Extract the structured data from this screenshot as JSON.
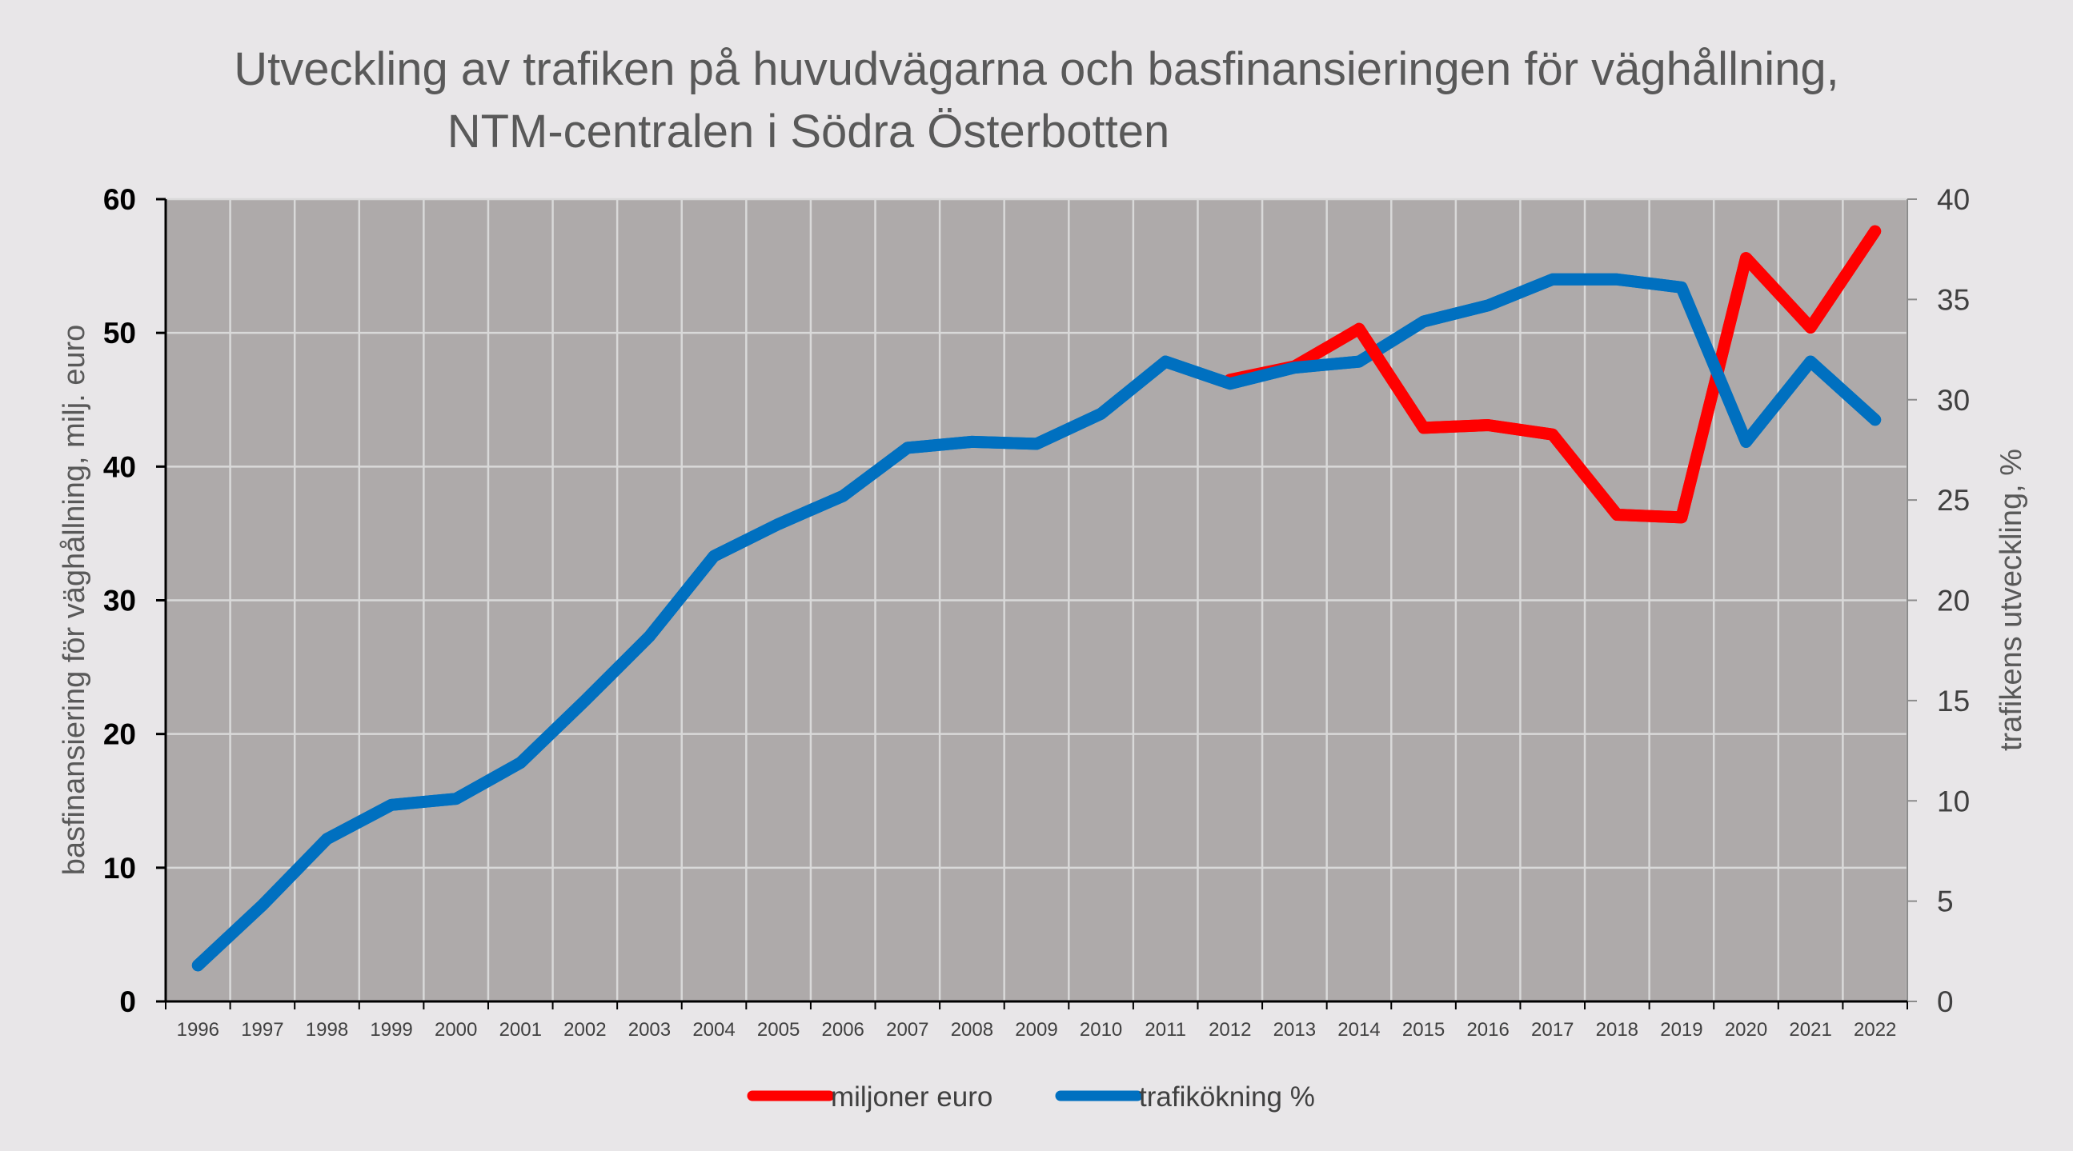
{
  "chart_data": {
    "type": "line",
    "title_lines": [
      "Utveckling av trafiken på huvudvägarna och basfinansieringen för väghållning,",
      "NTM-centralen i Södra Österbotten"
    ],
    "ylabel_left": "basfinansiering för väghållning, milj. euro",
    "ylabel_right": "trafikens utveckling, %",
    "ylim_left": [
      0,
      60
    ],
    "ylim_right": [
      0,
      40
    ],
    "yticks_left": [
      "0",
      "10",
      "20",
      "30",
      "40",
      "50",
      "60"
    ],
    "yticks_right": [
      "0",
      "5",
      "10",
      "15",
      "20",
      "25",
      "30",
      "35",
      "40"
    ],
    "x": [
      "1996",
      "1997",
      "1998",
      "1999",
      "2000",
      "2001",
      "2002",
      "2003",
      "2004",
      "2005",
      "2006",
      "2007",
      "2008",
      "2009",
      "2010",
      "2011",
      "2012",
      "2013",
      "2014",
      "2015",
      "2016",
      "2017",
      "2018",
      "2019",
      "2020",
      "2021",
      "2022"
    ],
    "grid": true,
    "legend_position": "bottom",
    "series": [
      {
        "name": "miljoner euro",
        "axis": "left",
        "color": "#ff0000",
        "first_index": 16,
        "values": [
          null,
          null,
          null,
          null,
          null,
          null,
          null,
          null,
          null,
          null,
          null,
          null,
          null,
          null,
          null,
          null,
          46.5,
          47.5,
          50.3,
          42.9,
          43.1,
          42.4,
          36.4,
          36.2,
          55.6,
          50.4,
          57.6
        ]
      },
      {
        "name": "trafikökning %",
        "axis": "right",
        "color": "#0070c0",
        "values": [
          1.8,
          4.8,
          8.1,
          9.8,
          10.1,
          11.9,
          15.0,
          18.2,
          22.2,
          23.8,
          25.2,
          27.6,
          27.9,
          27.8,
          29.3,
          31.9,
          30.8,
          31.6,
          31.9,
          33.9,
          34.7,
          36.0,
          36.0,
          35.6,
          27.9,
          31.9,
          29.0
        ]
      }
    ]
  }
}
